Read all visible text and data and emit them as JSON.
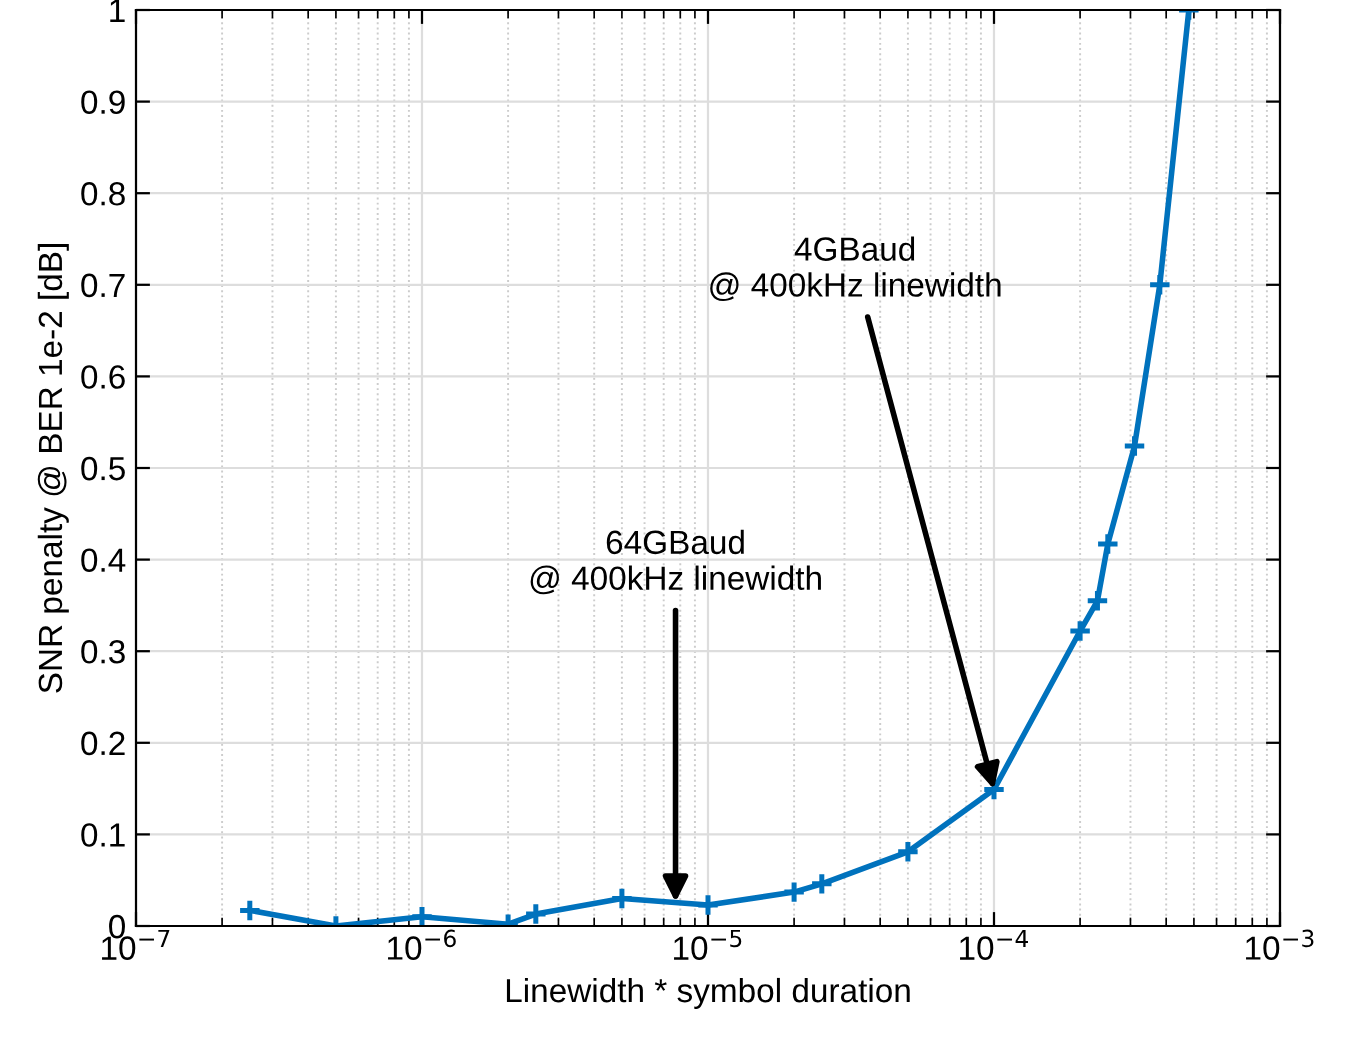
{
  "chart_data": {
    "type": "line",
    "xlabel": "Linewidth * symbol duration",
    "ylabel": "SNR penalty @ BER 1e-2 [dB]",
    "log": "x",
    "grid": true,
    "marker": "cross",
    "line_style": "solid",
    "xlim": [
      1e-07,
      0.001
    ],
    "ylim": [
      0,
      1
    ],
    "xticks": [
      {
        "value": 1e-07,
        "label": "10$^{−7}$"
      },
      {
        "value": 1e-06,
        "label": "10$^{−6}$"
      },
      {
        "value": 1e-05,
        "label": "10$^{−5}$"
      },
      {
        "value": 0.0001,
        "label": "10$^{−4}$"
      },
      {
        "value": 0.001,
        "label": "10$^{−3}$"
      }
    ],
    "yticks": [
      0,
      0.1,
      0.2,
      0.3,
      0.4,
      0.5,
      0.6,
      0.7,
      0.8,
      0.9,
      1
    ],
    "series": [
      {
        "color": "#0072bd",
        "x": [
          2.5e-07,
          5e-07,
          1e-06,
          2e-06,
          2.5e-06,
          5e-06,
          1e-05,
          2e-05,
          2.5e-05,
          5e-05,
          0.0001,
          0.0002,
          0.00023,
          0.00025,
          0.00031,
          0.00038,
          0.00048
        ],
        "values": [
          0.017,
          0.0,
          0.01,
          0.002,
          0.013,
          0.03,
          0.023,
          0.037,
          0.046,
          0.081,
          0.149,
          0.322,
          0.355,
          0.417,
          0.524,
          0.7,
          1.0
        ]
      }
    ],
    "annotations": [
      {
        "text": "64GBaud\n@ 400kHz linewidth",
        "x": 7.7e-06,
        "y": 0.026
      },
      {
        "text": "4GBaud\n@ 400kHz linewidth",
        "x": 0.0001,
        "y": 0.149
      }
    ]
  }
}
